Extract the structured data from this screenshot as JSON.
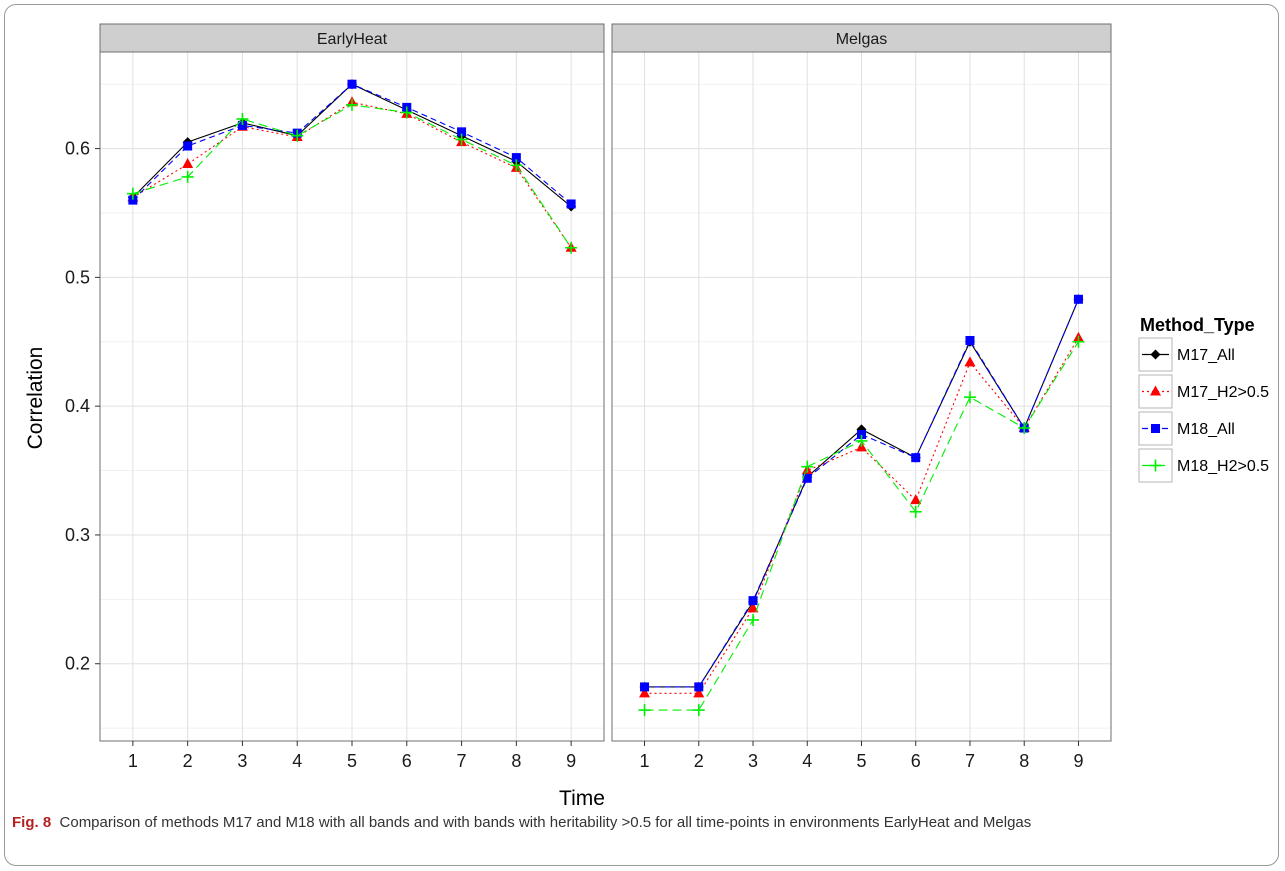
{
  "chart_data": {
    "type": "line",
    "facets": [
      "EarlyHeat",
      "Melgas"
    ],
    "x": [
      1,
      2,
      3,
      4,
      5,
      6,
      7,
      8,
      9
    ],
    "xlabel": "Time",
    "ylabel": "Correlation",
    "ylim": [
      0.14,
      0.675
    ],
    "yticks": [
      0.2,
      0.3,
      0.4,
      0.5,
      0.6
    ],
    "ytick_labels": [
      "0.2",
      "0.3",
      "0.4",
      "0.5",
      "0.6"
    ],
    "xtick_labels": [
      "1",
      "2",
      "3",
      "4",
      "5",
      "6",
      "7",
      "8",
      "9"
    ],
    "grid": true,
    "legend_title": "Method_Type",
    "legend_position": "right",
    "series": [
      {
        "name": "M17_All",
        "color": "#000000",
        "marker": "diamond",
        "line": "solid",
        "values": {
          "EarlyHeat": [
            0.562,
            0.605,
            0.62,
            0.61,
            0.65,
            0.63,
            0.61,
            0.59,
            0.555
          ],
          "Melgas": [
            0.182,
            0.182,
            0.248,
            0.345,
            0.382,
            0.36,
            0.45,
            0.383,
            0.483
          ]
        }
      },
      {
        "name": "M17_H2>0.5",
        "color": "#ff0000",
        "marker": "triangle",
        "line": "dotted",
        "values": {
          "EarlyHeat": [
            0.562,
            0.588,
            0.617,
            0.609,
            0.636,
            0.627,
            0.605,
            0.585,
            0.523
          ],
          "Melgas": [
            0.177,
            0.177,
            0.243,
            0.35,
            0.368,
            0.327,
            0.434,
            0.383,
            0.453
          ]
        }
      },
      {
        "name": "M18_All",
        "color": "#0000ff",
        "marker": "square",
        "line": "dashed",
        "values": {
          "EarlyHeat": [
            0.56,
            0.602,
            0.618,
            0.612,
            0.65,
            0.632,
            0.613,
            0.593,
            0.557
          ],
          "Melgas": [
            0.182,
            0.182,
            0.249,
            0.344,
            0.378,
            0.36,
            0.451,
            0.383,
            0.483
          ]
        }
      },
      {
        "name": "M18_H2>0.5",
        "color": "#00ee00",
        "marker": "cross",
        "line": "longdash",
        "values": {
          "EarlyHeat": [
            0.565,
            0.578,
            0.623,
            0.61,
            0.634,
            0.628,
            0.607,
            0.587,
            0.523
          ],
          "Melgas": [
            0.164,
            0.164,
            0.234,
            0.353,
            0.373,
            0.318,
            0.407,
            0.383,
            0.45
          ]
        }
      }
    ]
  },
  "caption": {
    "label": "Fig. 8",
    "text": "Comparison of methods M17 and M18 with all bands and with bands with heritability >0.5 for all time-points in environments EarlyHeat and Melgas"
  }
}
